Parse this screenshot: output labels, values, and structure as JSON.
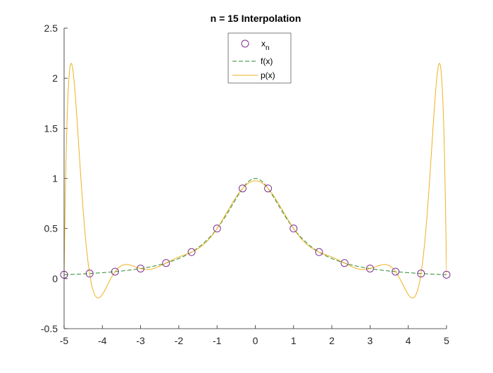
{
  "chart_data": {
    "type": "line",
    "title": "n = 15 Interpolation",
    "xlabel": "",
    "ylabel": "",
    "xlim": [
      -5,
      5
    ],
    "ylim": [
      -0.5,
      2.5
    ],
    "xticks": [
      "-5",
      "-4",
      "-3",
      "-2",
      "-1",
      "0",
      "1",
      "2",
      "3",
      "4",
      "5"
    ],
    "yticks": [
      "-0.5",
      "0",
      "0.5",
      "1",
      "1.5",
      "2",
      "2.5"
    ],
    "grid": false,
    "legend_position": "top-center",
    "legend": {
      "markers_label_base": "x",
      "markers_label_sub": "n",
      "f_label": "f(x)",
      "p_label": "p(x)"
    },
    "function": "1/(1+x^2)",
    "nodes": {
      "x": [
        -5,
        -4.3333,
        -3.6667,
        -3,
        -2.3333,
        -1.6667,
        -1,
        -0.3333,
        0.3333,
        1,
        1.6667,
        2.3333,
        3,
        3.6667,
        4.3333,
        5
      ],
      "y": [
        0.0385,
        0.0506,
        0.0692,
        0.1,
        0.1552,
        0.2647,
        0.5,
        0.9,
        0.9,
        0.5,
        0.2647,
        0.1552,
        0.1,
        0.0692,
        0.0506,
        0.0385
      ]
    },
    "series": [
      {
        "name": "x_n",
        "style": "markers",
        "color": "#7E2F8E"
      },
      {
        "name": "f(x)",
        "style": "dashed",
        "color": "#2E8B2E"
      },
      {
        "name": "p(x)",
        "style": "solid",
        "color": "#EDB120"
      }
    ]
  }
}
